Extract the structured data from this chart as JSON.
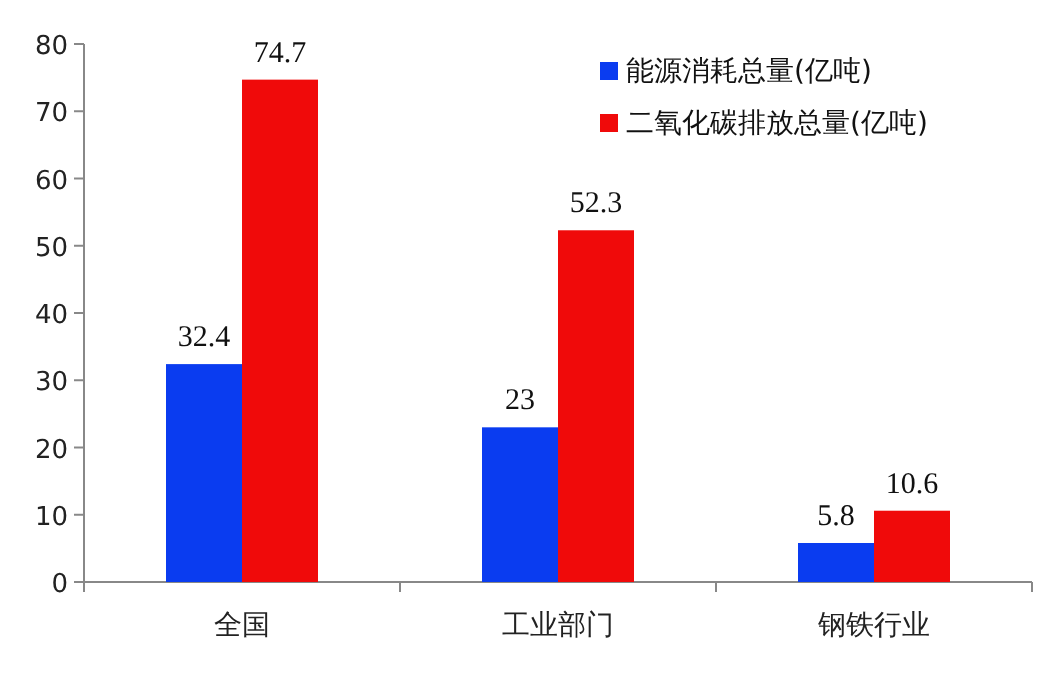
{
  "chart_data": {
    "type": "bar",
    "categories": [
      "全国",
      "工业部门",
      "钢铁行业"
    ],
    "series": [
      {
        "name": "能源消耗总量(亿吨)",
        "color": "#0a3cf0",
        "values": [
          32.4,
          23,
          5.8
        ]
      },
      {
        "name": "二氧化碳排放总量(亿吨)",
        "color": "#f00a0a",
        "values": [
          74.7,
          52.3,
          10.6
        ]
      }
    ],
    "ylim": [
      0,
      80
    ],
    "yticks": [
      0,
      10,
      20,
      30,
      40,
      50,
      60,
      70,
      80
    ],
    "data_labels": true,
    "legend": "top right",
    "grid": false
  }
}
